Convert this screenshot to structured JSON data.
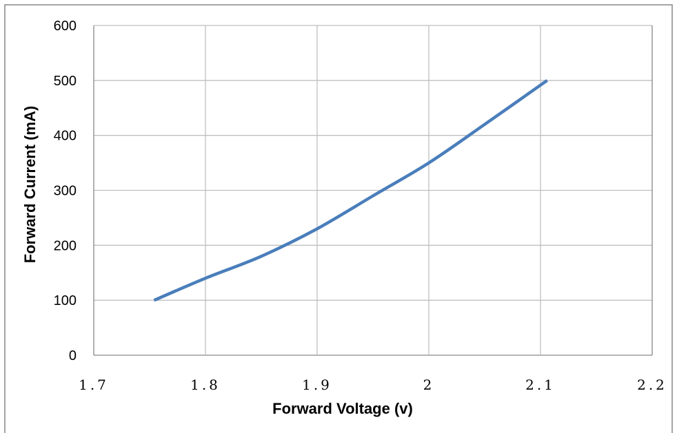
{
  "chart_data": {
    "type": "line",
    "title": "",
    "xlabel": "Forward Voltage (v)",
    "ylabel": "Forward Current  (mA)",
    "xlim": [
      1.7,
      2.2
    ],
    "ylim": [
      0,
      600
    ],
    "x_ticks": [
      1.7,
      1.8,
      1.9,
      2.0,
      2.1,
      2.2
    ],
    "x_tick_labels": [
      "1.7",
      "1.8",
      "1.9",
      "2",
      "2.1",
      "2.2"
    ],
    "y_ticks": [
      0,
      100,
      200,
      300,
      400,
      500,
      600
    ],
    "y_tick_labels": [
      "0",
      "100",
      "200",
      "300",
      "400",
      "500",
      "600"
    ],
    "grid": true,
    "legend": "none",
    "colors": {
      "series": "#4a7ebb",
      "grid": "#bfbfbf",
      "frame": "#868686"
    },
    "series": [
      {
        "x": [
          1.754,
          1.8,
          1.85,
          1.9,
          1.95,
          2.0,
          2.05,
          2.106
        ],
        "y": [
          100,
          140,
          180,
          230,
          290,
          350,
          420,
          500
        ]
      }
    ]
  }
}
